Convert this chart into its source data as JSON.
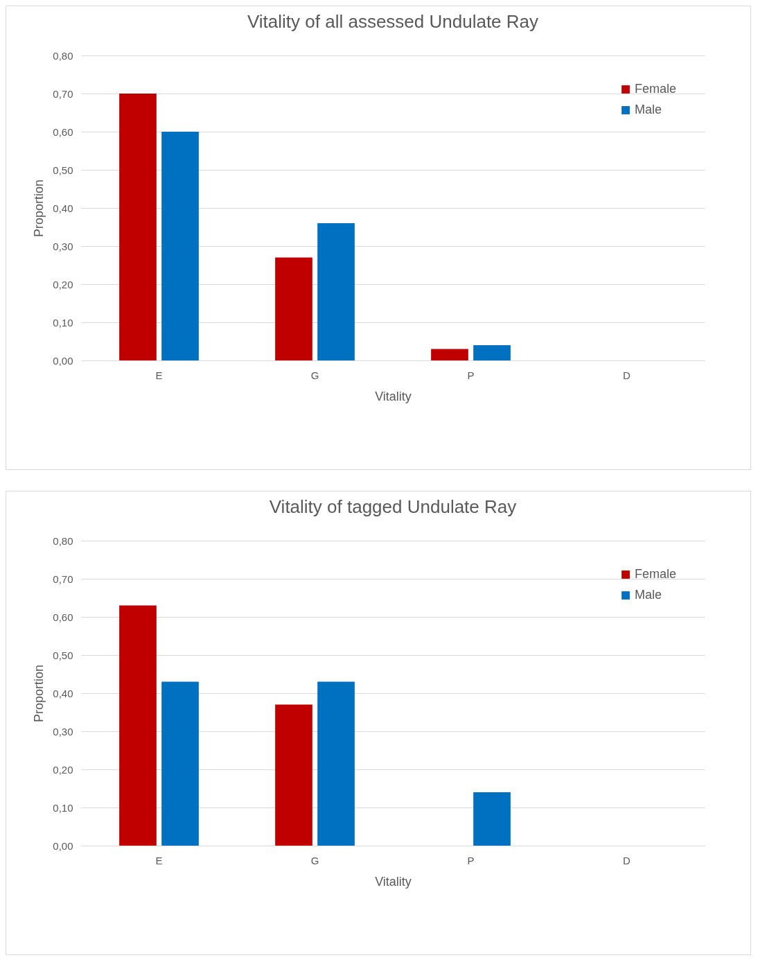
{
  "chart_data": [
    {
      "type": "bar",
      "title": "Vitality of all assessed Undulate Ray",
      "xlabel": "Vitality",
      "ylabel": "Proportion",
      "categories": [
        "E",
        "G",
        "P",
        "D"
      ],
      "series": [
        {
          "name": "Female",
          "color": "#c00000",
          "values": [
            0.7,
            0.27,
            0.03,
            0
          ]
        },
        {
          "name": "Male",
          "color": "#0070c0",
          "values": [
            0.6,
            0.36,
            0.04,
            0
          ]
        }
      ],
      "ylim": [
        0,
        0.8
      ],
      "yticks": [
        {
          "value": 0,
          "label": "0,00"
        },
        {
          "value": 0.1,
          "label": "0,10"
        },
        {
          "value": 0.2,
          "label": "0,20"
        },
        {
          "value": 0.3,
          "label": "0,30"
        },
        {
          "value": 0.4,
          "label": "0,40"
        },
        {
          "value": 0.5,
          "label": "0,50"
        },
        {
          "value": 0.6,
          "label": "0,60"
        },
        {
          "value": 0.7,
          "label": "0,70"
        },
        {
          "value": 0.8,
          "label": "0,80"
        }
      ],
      "grid": "y",
      "legend": "top right"
    },
    {
      "type": "bar",
      "title": "Vitality of tagged Undulate Ray",
      "xlabel": "Vitality",
      "ylabel": "Proportion",
      "categories": [
        "E",
        "G",
        "P",
        "D"
      ],
      "series": [
        {
          "name": "Female",
          "color": "#c00000",
          "values": [
            0.63,
            0.37,
            0,
            0
          ]
        },
        {
          "name": "Male",
          "color": "#0070c0",
          "values": [
            0.43,
            0.43,
            0.14,
            0
          ]
        }
      ],
      "ylim": [
        0,
        0.8
      ],
      "yticks": [
        {
          "value": 0,
          "label": "0,00"
        },
        {
          "value": 0.1,
          "label": "0,10"
        },
        {
          "value": 0.2,
          "label": "0,20"
        },
        {
          "value": 0.3,
          "label": "0,30"
        },
        {
          "value": 0.4,
          "label": "0,40"
        },
        {
          "value": 0.5,
          "label": "0,50"
        },
        {
          "value": 0.6,
          "label": "0,60"
        },
        {
          "value": 0.7,
          "label": "0,70"
        },
        {
          "value": 0.8,
          "label": "0,80"
        }
      ],
      "grid": "y",
      "legend": "top right"
    }
  ]
}
